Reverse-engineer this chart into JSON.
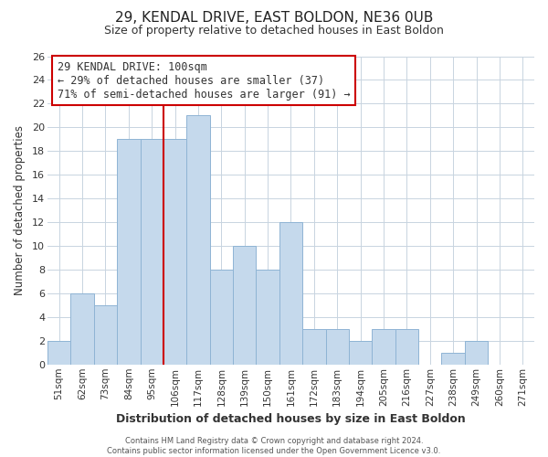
{
  "title": "29, KENDAL DRIVE, EAST BOLDON, NE36 0UB",
  "subtitle": "Size of property relative to detached houses in East Boldon",
  "xlabel": "Distribution of detached houses by size in East Boldon",
  "ylabel": "Number of detached properties",
  "bar_labels": [
    "51sqm",
    "62sqm",
    "73sqm",
    "84sqm",
    "95sqm",
    "106sqm",
    "117sqm",
    "128sqm",
    "139sqm",
    "150sqm",
    "161sqm",
    "172sqm",
    "183sqm",
    "194sqm",
    "205sqm",
    "216sqm",
    "227sqm",
    "238sqm",
    "249sqm",
    "260sqm",
    "271sqm"
  ],
  "bar_values": [
    2,
    6,
    5,
    19,
    19,
    19,
    21,
    8,
    10,
    8,
    12,
    3,
    3,
    2,
    3,
    3,
    0,
    1,
    2,
    0,
    0
  ],
  "ylim": [
    0,
    26
  ],
  "yticks": [
    0,
    2,
    4,
    6,
    8,
    10,
    12,
    14,
    16,
    18,
    20,
    22,
    24,
    26
  ],
  "bar_color": "#c5d9ec",
  "bar_edge_color": "#8fb4d4",
  "vline_x_index": 4.5,
  "vline_color": "#cc0000",
  "annotation_text": "29 KENDAL DRIVE: 100sqm\n← 29% of detached houses are smaller (37)\n71% of semi-detached houses are larger (91) →",
  "annotation_box_color": "#ffffff",
  "annotation_box_edge": "#cc0000",
  "footer": "Contains HM Land Registry data © Crown copyright and database right 2024.\nContains public sector information licensed under the Open Government Licence v3.0.",
  "background_color": "#ffffff",
  "grid_color": "#c8d4e0",
  "title_fontsize": 11,
  "subtitle_fontsize": 9
}
